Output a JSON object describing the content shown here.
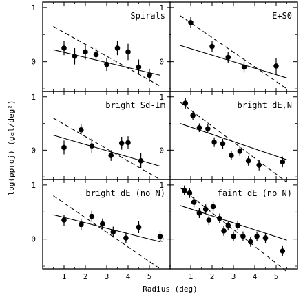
{
  "figure": {
    "xlabel": "Radius (deg)",
    "ylabel": "log(ρproj) (gal/deg²)",
    "xticks": [
      "1",
      "2",
      "3",
      "4",
      "5"
    ],
    "yticks": [
      "1",
      "0"
    ]
  },
  "chart_data": [
    {
      "type": "scatter",
      "title": "Spirals",
      "xlim": [
        0,
        6
      ],
      "ylim": [
        -0.55,
        1.1
      ],
      "x": [
        1.0,
        1.5,
        2.0,
        2.5,
        3.0,
        3.5,
        4.0,
        4.5,
        5.0
      ],
      "y": [
        0.25,
        0.1,
        0.18,
        0.13,
        -0.05,
        0.25,
        0.18,
        -0.1,
        -0.25
      ],
      "err": [
        0.13,
        0.15,
        0.14,
        0.12,
        0.12,
        0.13,
        0.15,
        0.14,
        0.12
      ],
      "fit_solid": [
        [
          0.5,
          0.22
        ],
        [
          5.5,
          -0.25
        ]
      ],
      "fit_dashed": [
        [
          0.5,
          0.65
        ],
        [
          5.5,
          -0.45
        ]
      ],
      "legend": "top-right"
    },
    {
      "type": "scatter",
      "title": "E+S0",
      "xlim": [
        0,
        6
      ],
      "ylim": [
        -0.55,
        1.1
      ],
      "x": [
        1.0,
        2.0,
        2.75,
        3.5,
        5.0
      ],
      "y": [
        0.72,
        0.28,
        0.08,
        -0.1,
        -0.08
      ],
      "err": [
        0.1,
        0.1,
        0.1,
        0.1,
        0.15
      ],
      "fit_solid": [
        [
          0.5,
          0.3
        ],
        [
          5.5,
          -0.3
        ]
      ],
      "fit_dashed": [
        [
          0.5,
          0.85
        ],
        [
          5.5,
          -0.5
        ]
      ],
      "legend": "top-right"
    },
    {
      "type": "scatter",
      "title": "bright Sd-Im",
      "xlim": [
        0,
        6
      ],
      "ylim": [
        -0.55,
        1.1
      ],
      "x": [
        1.0,
        1.8,
        2.3,
        3.2,
        3.7,
        4.0,
        4.6
      ],
      "y": [
        0.05,
        0.38,
        0.08,
        -0.1,
        0.13,
        0.14,
        -0.2
      ],
      "err": [
        0.13,
        0.1,
        0.14,
        0.1,
        0.12,
        0.12,
        0.14
      ],
      "fit_solid": [
        [
          0.5,
          0.28
        ],
        [
          5.5,
          -0.3
        ]
      ],
      "fit_dashed": [
        [
          0.5,
          0.6
        ],
        [
          5.5,
          -0.55
        ]
      ],
      "legend": "top-right"
    },
    {
      "type": "scatter",
      "title": "bright dE,N",
      "xlim": [
        0,
        6
      ],
      "ylim": [
        -0.55,
        1.1
      ],
      "x": [
        0.75,
        1.1,
        1.4,
        1.8,
        2.1,
        2.5,
        2.9,
        3.3,
        3.7,
        4.2,
        5.3
      ],
      "y": [
        0.88,
        0.65,
        0.42,
        0.4,
        0.15,
        0.12,
        -0.1,
        -0.02,
        -0.2,
        -0.28,
        -0.22
      ],
      "err": [
        0.1,
        0.09,
        0.08,
        0.08,
        0.09,
        0.09,
        0.08,
        0.09,
        0.09,
        0.1,
        0.1
      ],
      "fit_solid": [
        [
          0.5,
          0.5
        ],
        [
          5.5,
          -0.18
        ]
      ],
      "fit_dashed": [
        [
          0.5,
          0.9
        ],
        [
          5.5,
          -0.6
        ]
      ],
      "legend": "top-right"
    },
    {
      "type": "scatter",
      "title": "bright dE (no N)",
      "xlim": [
        0,
        6
      ],
      "ylim": [
        -0.55,
        1.1
      ],
      "x": [
        1.0,
        1.8,
        2.3,
        2.8,
        3.3,
        3.9,
        4.5,
        5.5
      ],
      "y": [
        0.35,
        0.27,
        0.42,
        0.28,
        0.13,
        0.02,
        0.22,
        0.05
      ],
      "err": [
        0.1,
        0.11,
        0.1,
        0.1,
        0.1,
        0.1,
        0.11,
        0.1
      ],
      "fit_solid": [
        [
          0.5,
          0.45
        ],
        [
          5.5,
          -0.05
        ]
      ],
      "fit_dashed": [
        [
          0.5,
          0.8
        ],
        [
          5.5,
          -0.55
        ]
      ],
      "legend": "top-right"
    },
    {
      "type": "scatter",
      "title": "faint dE (no N)",
      "xlim": [
        0,
        6
      ],
      "ylim": [
        -0.55,
        1.1
      ],
      "x": [
        0.7,
        0.95,
        1.15,
        1.4,
        1.7,
        1.85,
        2.05,
        2.35,
        2.55,
        2.75,
        3.0,
        3.2,
        3.45,
        3.8,
        4.1,
        4.5,
        5.3
      ],
      "y": [
        0.9,
        0.85,
        0.68,
        0.48,
        0.55,
        0.35,
        0.6,
        0.38,
        0.15,
        0.25,
        0.05,
        0.25,
        0.05,
        -0.05,
        0.05,
        0.02,
        -0.22
      ],
      "err": [
        0.09,
        0.09,
        0.09,
        0.09,
        0.09,
        0.09,
        0.09,
        0.09,
        0.09,
        0.09,
        0.09,
        0.09,
        0.09,
        0.09,
        0.09,
        0.09,
        0.09
      ],
      "fit_solid": [
        [
          0.5,
          0.62
        ],
        [
          5.5,
          -0.02
        ]
      ],
      "fit_dashed": [
        [
          0.5,
          0.95
        ],
        [
          5.5,
          -0.6
        ]
      ],
      "legend": "top-right"
    }
  ]
}
